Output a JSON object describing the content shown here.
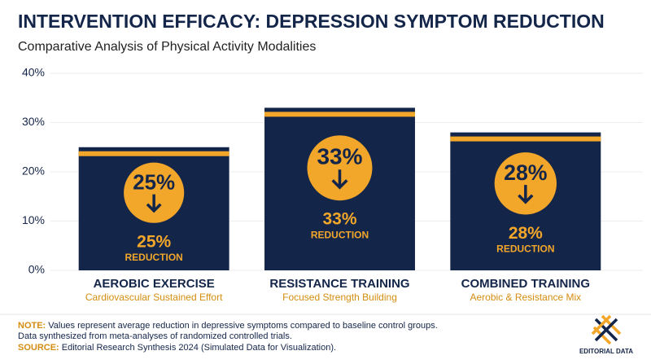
{
  "chart_data": {
    "type": "bar",
    "title": "INTERVENTION EFFICACY: DEPRESSION SYMPTOM REDUCTION",
    "subtitle": "Comparative Analysis of Physical Activity Modalities",
    "categories": [
      "AEROBIC EXERCISE",
      "RESISTANCE TRAINING",
      "COMBINED TRAINING"
    ],
    "category_subtitles": [
      "Cardiovascular Sustained Effort",
      "Focused Strength Building",
      "Aerobic & Resistance Mix"
    ],
    "values": [
      25,
      33,
      28
    ],
    "value_labels": [
      "25%",
      "33%",
      "28%"
    ],
    "badge_text": "REDUCTION",
    "color": "#14254a",
    "accent_color": "#f2a72a",
    "ylim": [
      0,
      40
    ],
    "yticks": [
      {
        "value": 0,
        "label": "0%"
      },
      {
        "value": 10,
        "label": "10%"
      },
      {
        "value": 20,
        "label": "20%"
      },
      {
        "value": 30,
        "label": "30%"
      },
      {
        "value": 40,
        "label": "40%"
      }
    ],
    "grid": true,
    "note_label": "NOTE:",
    "note_lines": [
      "Values represent average reduction in depressive symptoms compared to baseline control groups.",
      "Data synthesized from meta-analyses of randomized controlled trials."
    ],
    "source_label": "SOURCE:",
    "source": "Editorial Research Synthesis 2024 (Simulated Data for Visualization).",
    "brand": "EDITORIAL DATA"
  }
}
